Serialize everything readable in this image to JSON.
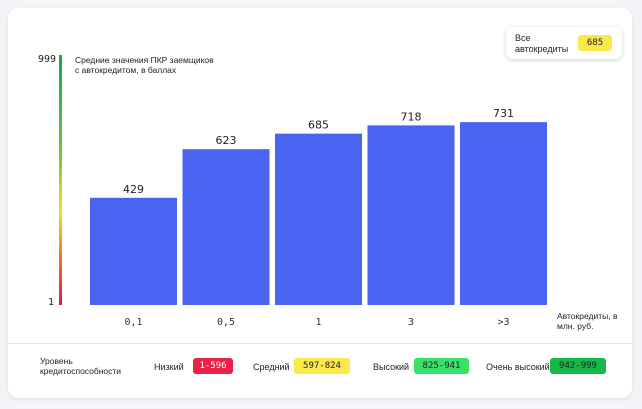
{
  "badge": {
    "label": "Все автокредиты",
    "value": "685",
    "color": "#fbe84a"
  },
  "scale": {
    "top": "999",
    "bottom": "1"
  },
  "chart_data": {
    "type": "bar",
    "title": "Средние значения ПКР заемщиков с автокредитом, в баллах",
    "ylabel": "Средние значения ПКР заемщиков с автокредитом, в баллах",
    "xlabel": "Автокредиты, в млн. руб.",
    "categories": [
      "0,1",
      "0,5",
      "1",
      "3",
      ">3"
    ],
    "values": [
      429,
      623,
      685,
      718,
      731
    ],
    "ylim": [
      1,
      999
    ],
    "bar_color": "#4a63f0"
  },
  "legend": {
    "title": "Уровень кредитоспособности",
    "items": [
      {
        "label": "Низкий",
        "range": "1-596",
        "color": "#ec2146",
        "text_color": "#ffffff"
      },
      {
        "label": "Средний",
        "range": "597-824",
        "color": "#fbe84a",
        "text_color": "#222222"
      },
      {
        "label": "Высокий",
        "range": "825-941",
        "color": "#39e06a",
        "text_color": "#222222"
      },
      {
        "label": "Очень высокий",
        "range": "942-999",
        "color": "#15b94a",
        "text_color": "#222222"
      }
    ]
  }
}
